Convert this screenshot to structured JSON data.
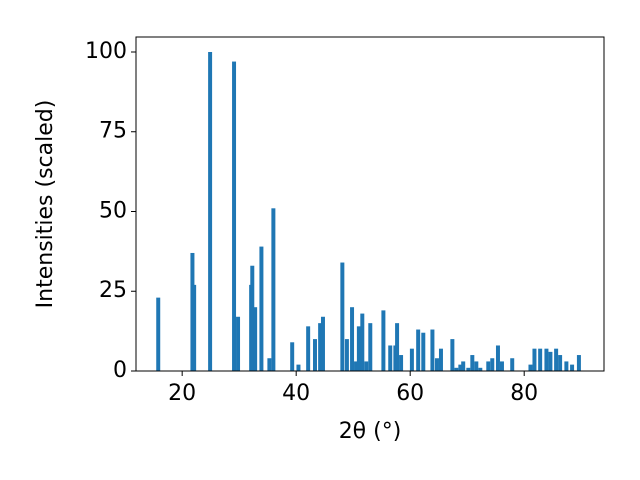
{
  "chart_data": {
    "type": "bar",
    "x_label": "2θ (°)",
    "y_label": "Intensities (scaled)",
    "color": "#1f77b4",
    "x": [
      15.8,
      21.8,
      22.1,
      24.9,
      29.1,
      29.8,
      32.1,
      32.3,
      32.8,
      33.9,
      35.3,
      36.0,
      39.3,
      40.4,
      42.1,
      43.3,
      44.2,
      44.7,
      48.1,
      48.9,
      49.8,
      50.5,
      51.0,
      51.6,
      52.3,
      53.0,
      55.3,
      56.5,
      57.4,
      57.7,
      58.4,
      60.3,
      61.4,
      62.3,
      63.9,
      64.7,
      65.4,
      67.4,
      68.1,
      68.8,
      69.3,
      70.2,
      70.9,
      71.6,
      72.3,
      73.7,
      74.4,
      75.4,
      76.1,
      77.9,
      81.1,
      81.8,
      82.8,
      83.9,
      84.6,
      85.6,
      86.3,
      87.4,
      88.4,
      89.6
    ],
    "values": [
      23,
      37,
      27,
      100,
      97,
      17,
      27,
      33,
      20,
      39,
      4,
      51,
      9,
      2,
      14,
      10,
      15,
      17,
      34,
      10,
      20,
      3,
      14,
      18,
      3,
      15,
      19,
      8,
      8,
      15,
      5,
      7,
      13,
      12,
      13,
      4,
      7,
      10,
      1,
      2,
      3,
      1,
      5,
      3,
      1,
      3,
      4,
      8,
      3,
      4,
      2,
      7,
      7,
      7,
      6,
      7,
      5,
      3,
      2,
      5
    ],
    "xlim": [
      11.9,
      94.0
    ],
    "ylim": [
      0,
      104.7
    ],
    "xticks": [
      20,
      40,
      60,
      80
    ],
    "yticks": [
      0,
      25,
      50,
      75,
      100
    ]
  }
}
